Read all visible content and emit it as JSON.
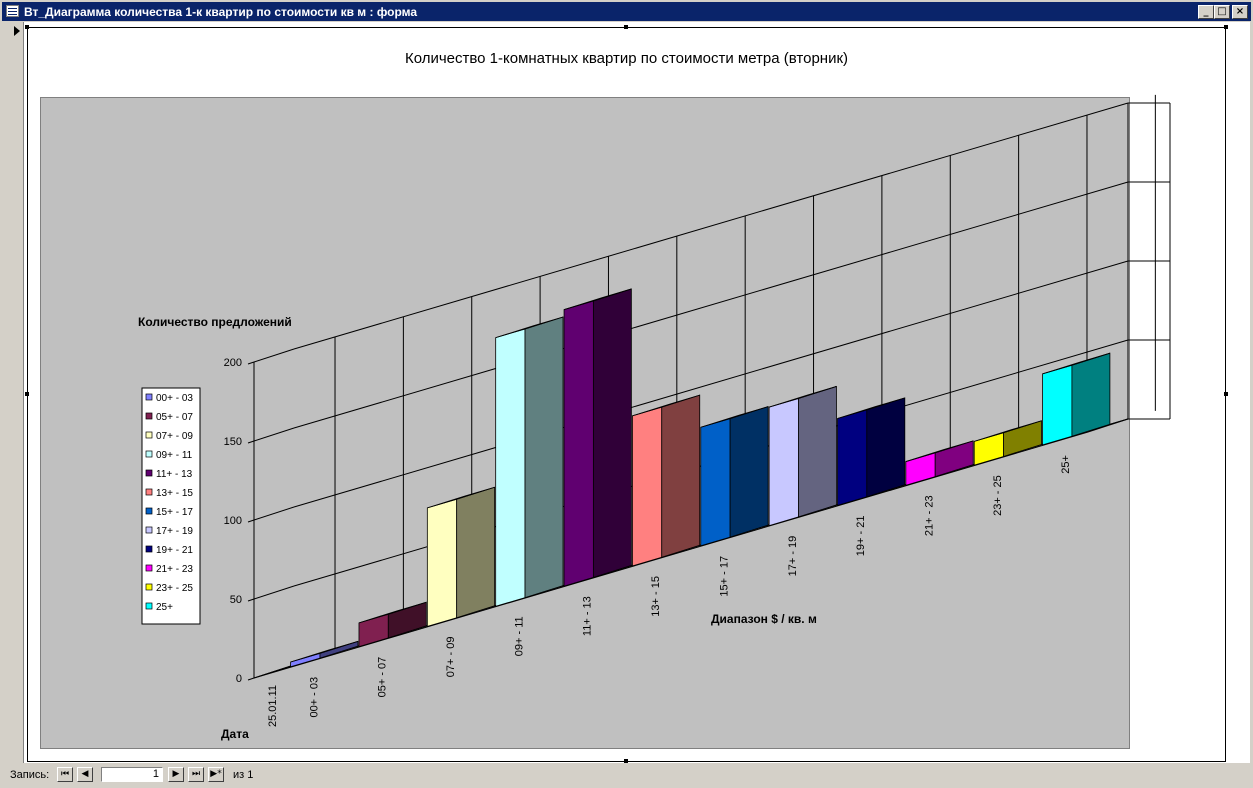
{
  "window": {
    "title": "Вт_Диаграмма количества 1-к квартир по стоимости кв м : форма"
  },
  "chart_data": {
    "type": "bar",
    "title": "Количество 1-комнатных квартир по стоимости метра (вторник)",
    "ylabel": "Количество предложений",
    "xlabel": "Диапазон $ / кв. м",
    "depth_label": "Дата",
    "depth_category": "25.01.11",
    "ylim": [
      0,
      200
    ],
    "yticks": [
      "0",
      "50",
      "100",
      "150",
      "200"
    ],
    "grid": true,
    "legend_position": "left",
    "categories": [
      "00+ - 03",
      "05+ - 07",
      "07+ - 09",
      "09+ - 11",
      "11+ - 13",
      "13+ - 15",
      "15+ - 17",
      "17+ - 19",
      "19+ - 21",
      "21+ - 23",
      "23+ - 25",
      "25+"
    ],
    "values": [
      3,
      15,
      75,
      170,
      175,
      95,
      75,
      75,
      55,
      15,
      15,
      45
    ],
    "colors": [
      "#8080ff",
      "#802050",
      "#ffffc0",
      "#c0ffff",
      "#600070",
      "#ff8080",
      "#0060c8",
      "#c8c8ff",
      "#000080",
      "#ff00ff",
      "#ffff00",
      "#00ffff"
    ]
  },
  "navigation": {
    "record_label": "Запись:",
    "current_record": "1",
    "of_label": "из",
    "total_records": "1",
    "first_icon": "first-record-icon",
    "prev_icon": "prev-record-icon",
    "next_icon": "next-record-icon",
    "last_icon": "last-record-icon",
    "new_icon": "new-record-icon"
  }
}
